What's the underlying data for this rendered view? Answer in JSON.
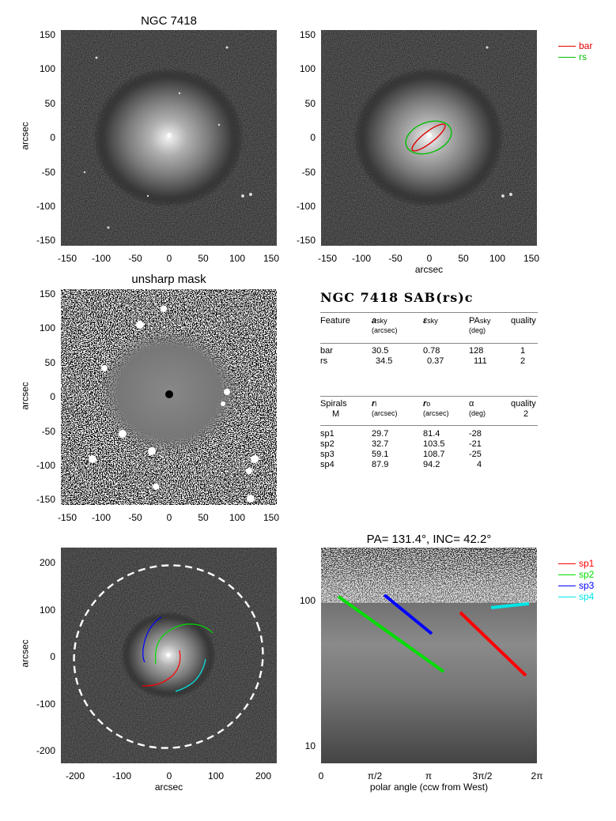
{
  "panels": {
    "p1": {
      "title": "NGC 7418",
      "ylabel": "arcsec"
    },
    "p2": {
      "xlabel": "arcsec",
      "legend": [
        {
          "label": "bar",
          "color": "#e00000"
        },
        {
          "label": "rs",
          "color": "#00c000"
        }
      ]
    },
    "p3": {
      "title": "unsharp mask",
      "ylabel": "arcsec"
    },
    "p5": {
      "ylabel": "arcsec",
      "xlabel": "arcsec"
    },
    "p6": {
      "title": "PA= 131.4°, INC=  42.2°",
      "xlabel": "polar angle (ccw from West)",
      "legend": [
        {
          "label": "sp1",
          "color": "#ff0000"
        },
        {
          "label": "sp2",
          "color": "#00dd00"
        },
        {
          "label": "sp3",
          "color": "#0000ff"
        },
        {
          "label": "sp4",
          "color": "#00e5e5"
        }
      ]
    }
  },
  "ticks": {
    "small_x": [
      "-150",
      "-100",
      "-50",
      "0",
      "50",
      "100",
      "150"
    ],
    "small_y": [
      "150",
      "100",
      "50",
      "0",
      "-50",
      "-100",
      "-150"
    ],
    "big": [
      "200",
      "100",
      "0",
      "-100",
      "-200"
    ],
    "polar_x": [
      "0",
      "π/2",
      "π",
      "3π/2",
      "2π"
    ],
    "log_y": [
      "100",
      "10"
    ]
  },
  "table": {
    "heading": "NGC 7418  SAB(rs)c",
    "features": {
      "headers": {
        "feature": "Feature",
        "a": "a",
        "a_sub": "sky",
        "a_unit": "(arcsec)",
        "eps": "ε",
        "eps_sub": "sky",
        "pa": "PA",
        "pa_sub": "sky",
        "pa_unit": "(deg)",
        "quality": "quality"
      },
      "rows": [
        {
          "name": "bar",
          "a": "30.5",
          "eps": "0.78",
          "pa": "128",
          "q": "1"
        },
        {
          "name": "rs",
          "a": "34.5",
          "eps": "0.37",
          "pa": "111",
          "q": "2"
        }
      ]
    },
    "spirals": {
      "headers": {
        "feature": "Spirals",
        "m": "M",
        "ri": "r",
        "ri_sub": "i",
        "ri_unit": "(arcsec)",
        "ro": "r",
        "ro_sub": "o",
        "ro_unit": "(arcsec)",
        "alpha": "α",
        "alpha_unit": "(deg)",
        "quality": "quality",
        "quality_val": "2"
      },
      "rows": [
        {
          "name": "sp1",
          "ri": "29.7",
          "ro": "81.4",
          "alpha": "-28"
        },
        {
          "name": "sp2",
          "ri": "32.7",
          "ro": "103.5",
          "alpha": "-21"
        },
        {
          "name": "sp3",
          "ri": "59.1",
          "ro": "108.7",
          "alpha": "-25"
        },
        {
          "name": "sp4",
          "ri": "87.9",
          "ro": "94.2",
          "alpha": "4"
        }
      ]
    }
  }
}
